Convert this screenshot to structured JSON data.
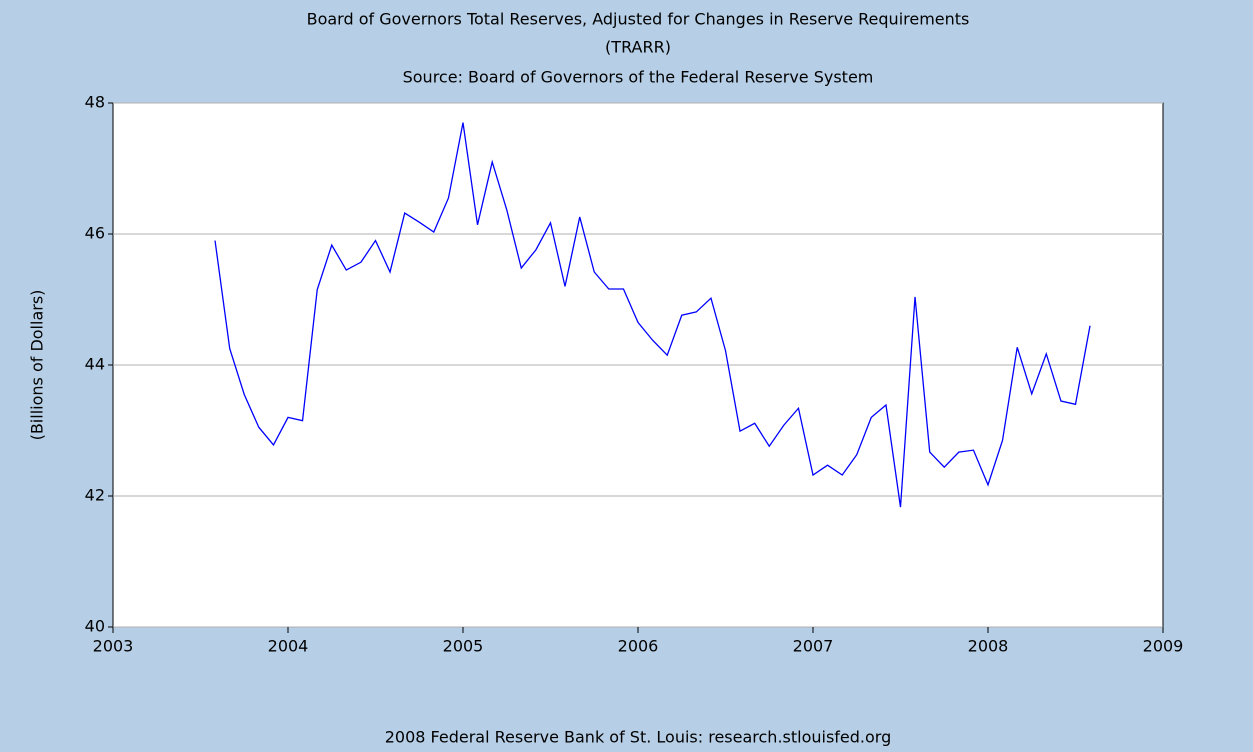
{
  "chart_data": {
    "type": "line",
    "title": "Board of Governors Total Reserves, Adjusted for Changes in Reserve Requirements",
    "subtitle": "(TRARR)",
    "source": "Source: Board of Governors of the Federal Reserve System",
    "ylabel": "(Billions of Dollars)",
    "footer": "2008 Federal Reserve Bank of St. Louis: research.stlouisfed.org",
    "x": [
      2003.583,
      2003.667,
      2003.75,
      2003.833,
      2003.917,
      2004,
      2004.083,
      2004.167,
      2004.25,
      2004.333,
      2004.417,
      2004.5,
      2004.583,
      2004.667,
      2004.75,
      2004.833,
      2004.917,
      2005,
      2005.083,
      2005.167,
      2005.25,
      2005.333,
      2005.417,
      2005.5,
      2005.583,
      2005.667,
      2005.75,
      2005.833,
      2005.917,
      2006,
      2006.083,
      2006.167,
      2006.25,
      2006.333,
      2006.417,
      2006.5,
      2006.583,
      2006.667,
      2006.75,
      2006.833,
      2006.917,
      2007,
      2007.083,
      2007.167,
      2007.25,
      2007.333,
      2007.417,
      2007.5,
      2007.583,
      2007.667,
      2007.75,
      2007.833,
      2007.917,
      2008,
      2008.083,
      2008.167,
      2008.25,
      2008.333,
      2008.417,
      2008.5,
      2008.583
    ],
    "series": [
      {
        "name": "TRARR",
        "color": "#0000ff",
        "values": [
          45.9,
          44.25,
          43.55,
          43.05,
          42.78,
          43.2,
          43.15,
          45.15,
          45.83,
          45.45,
          45.57,
          45.9,
          45.42,
          46.32,
          46.18,
          46.03,
          46.55,
          47.7,
          46.14,
          47.1,
          46.37,
          45.48,
          45.76,
          46.17,
          45.2,
          46.26,
          45.42,
          45.16,
          45.16,
          44.65,
          44.38,
          44.15,
          44.76,
          44.81,
          45.02,
          44.22,
          42.99,
          43.11,
          42.76,
          43.08,
          43.34,
          42.32,
          42.47,
          42.32,
          42.63,
          43.2,
          43.39,
          41.83,
          45.04,
          42.67,
          42.44,
          42.67,
          42.7,
          42.17,
          42.85,
          44.27,
          43.56,
          44.17,
          43.45,
          43.4,
          44.6
        ]
      }
    ],
    "xlim": [
      2003,
      2009
    ],
    "xticks": [
      2003,
      2004,
      2005,
      2006,
      2007,
      2008,
      2009
    ],
    "ylim": [
      40,
      48
    ],
    "yticks": [
      40,
      42,
      44,
      46,
      48
    ],
    "grid": true
  }
}
